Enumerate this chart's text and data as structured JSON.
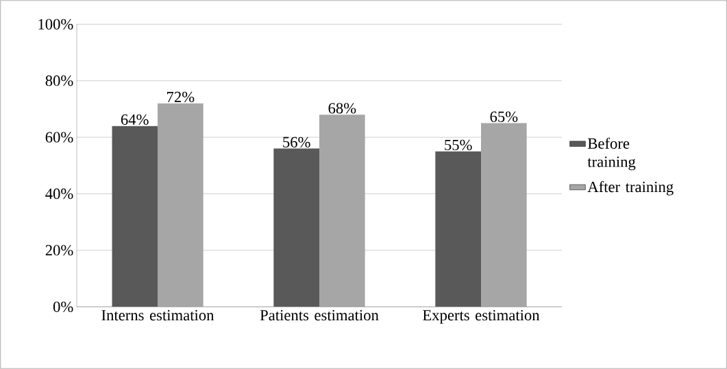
{
  "chart_data": {
    "type": "bar",
    "categories": [
      "Interns estimation",
      "Patients estimation",
      "Experts estimation"
    ],
    "series": [
      {
        "name": "Before training",
        "color": "#595959",
        "values": [
          64,
          56,
          55
        ],
        "value_labels": [
          "64%",
          "56%",
          "55%"
        ]
      },
      {
        "name": "After training",
        "color": "#a6a6a6",
        "values": [
          72,
          68,
          65
        ],
        "value_labels": [
          "72%",
          "68%",
          "65%"
        ]
      }
    ],
    "ylim": [
      0,
      100
    ],
    "yticks": [
      {
        "value": 0,
        "label": "0%"
      },
      {
        "value": 20,
        "label": "20%"
      },
      {
        "value": 40,
        "label": "40%"
      },
      {
        "value": 60,
        "label": "60%"
      },
      {
        "value": 80,
        "label": "80%"
      },
      {
        "value": 100,
        "label": "100%"
      }
    ],
    "grid": "y",
    "legend": "right"
  }
}
